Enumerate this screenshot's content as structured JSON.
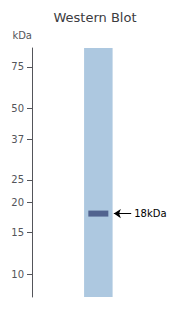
{
  "chart_data": {
    "type": "blot",
    "title": "Western Blot",
    "ylabel": "kDa",
    "log": "y",
    "ylim": [
      8,
      90
    ],
    "yticks": [
      75,
      50,
      37,
      25,
      20,
      15,
      10
    ],
    "series": [
      {
        "type": "lane",
        "color": "#adc8e0"
      },
      {
        "type": "band",
        "color": "#3a4a7a",
        "values": [
          18
        ]
      }
    ],
    "annotations": [
      {
        "text": "18kDa",
        "y": 18
      }
    ]
  }
}
